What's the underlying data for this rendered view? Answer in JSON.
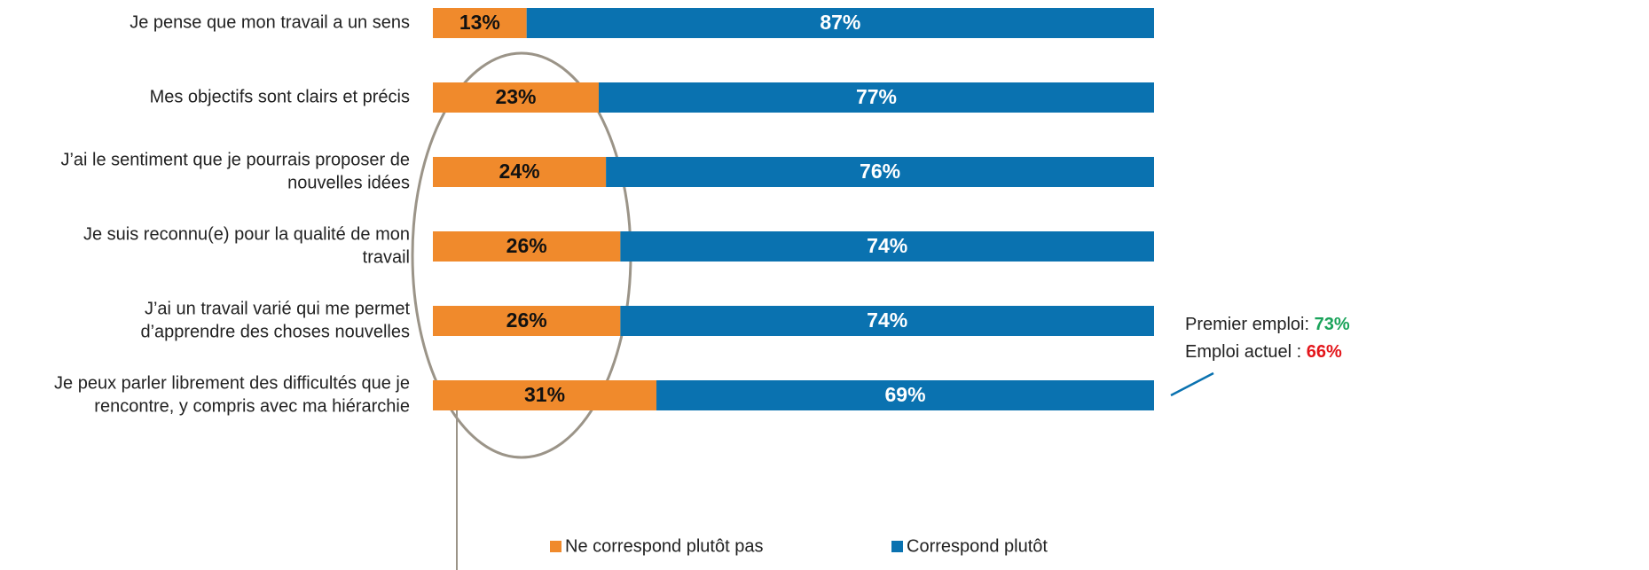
{
  "chart_data": {
    "type": "stacked-bar-horizontal",
    "categories": [
      [
        "Je pense que mon travail a un sens"
      ],
      [
        "Mes objectifs sont clairs et précis"
      ],
      [
        "J’ai le sentiment que je pourrais proposer de",
        "nouvelles idées"
      ],
      [
        "Je suis reconnu(e) pour la qualité de mon",
        "travail"
      ],
      [
        "J’ai un travail varié qui me permet",
        "d’apprendre des choses nouvelles"
      ],
      [
        "Je peux parler librement des difficultés que je",
        "rencontre, y compris avec ma hiérarchie"
      ]
    ],
    "xlim": [
      0,
      100
    ],
    "series": [
      {
        "name": "Ne correspond plutôt pas",
        "color": "#f08a2c",
        "label_color": "#111111",
        "values": [
          13,
          23,
          24,
          26,
          26,
          31
        ],
        "value_labels": [
          "13%",
          "23%",
          "24%",
          "26%",
          "26%",
          "31%"
        ]
      },
      {
        "name": "Correspond plutôt",
        "color": "#0a72b0",
        "label_color": "#ffffff",
        "values": [
          87,
          77,
          76,
          74,
          74,
          69
        ],
        "value_labels": [
          "87%",
          "77%",
          "76%",
          "74%",
          "74%",
          "69%"
        ]
      }
    ],
    "annotation": {
      "lines": [
        {
          "text": "Premier emploi: ",
          "highlight": "73%",
          "color": "#1aa35a"
        },
        {
          "text": "Emploi actuel : ",
          "highlight": "66%",
          "color": "#e3161b"
        }
      ]
    }
  }
}
